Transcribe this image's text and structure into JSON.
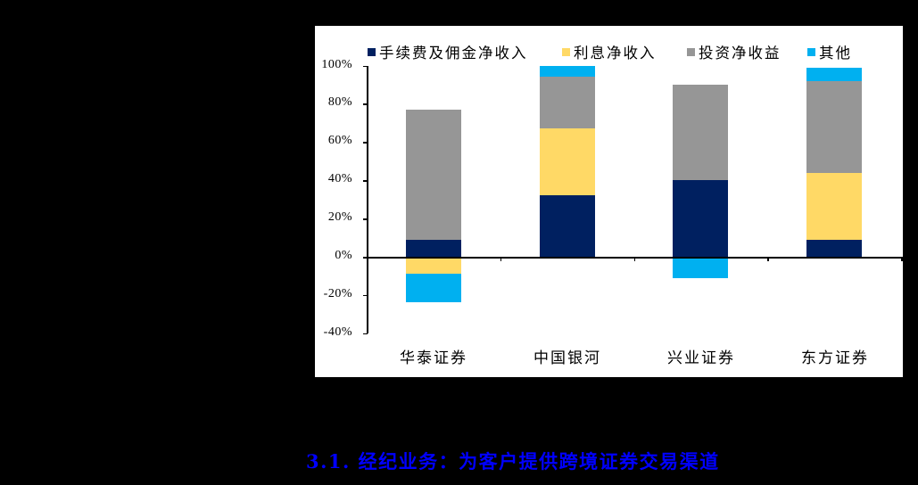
{
  "heading": "3.1.  经纪业务：为客户提供跨境证券交易渠道",
  "colors": {
    "fee_commission": "#002060",
    "interest": "#FFD966",
    "investment": "#969696",
    "other": "#00B0F0",
    "heading": "#0000FF"
  },
  "chart_data": {
    "type": "bar",
    "stacked": true,
    "title": "",
    "xlabel": "",
    "ylabel": "",
    "ylim": [
      -40,
      100
    ],
    "yticks": [
      "100%",
      "80%",
      "60%",
      "40%",
      "20%",
      "0%",
      "-20%",
      "-40%"
    ],
    "grid": false,
    "legend_position": "top",
    "categories": [
      "华泰证券",
      "中国银河",
      "兴业证券",
      "东方证券"
    ],
    "series": [
      {
        "name": "手续费及佣金净收入",
        "color": "#002060",
        "values": [
          9,
          32,
          40,
          9
        ]
      },
      {
        "name": "利息净收入",
        "color": "#FFD966",
        "values": [
          -9,
          35,
          0,
          35
        ]
      },
      {
        "name": "投资净收益",
        "color": "#969696",
        "values": [
          68,
          27,
          50,
          48
        ]
      },
      {
        "name": "其他",
        "color": "#00B0F0",
        "values": [
          -15,
          6,
          -11,
          7
        ]
      }
    ]
  }
}
